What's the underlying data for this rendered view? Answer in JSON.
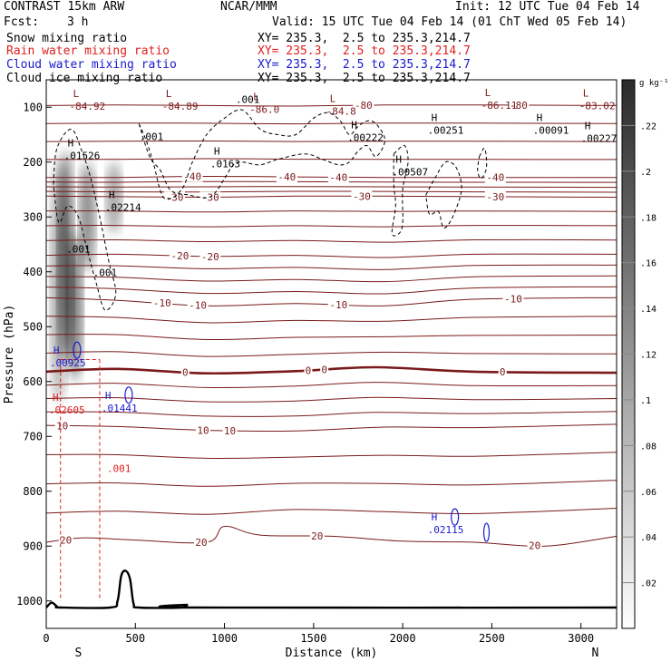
{
  "header": {
    "model": "CONTRAST 15km ARW",
    "center": "NCAR/MMM",
    "init": "Init: 12 UTC Tue 04 Feb 14",
    "fcst_label": "Fcst:",
    "fcst_value": "3 h",
    "valid": "Valid: 15 UTC Tue 04 Feb 14 (01 ChT Wed 05 Feb 14)"
  },
  "fields": [
    {
      "name": "Snow mixing ratio",
      "xy": "XY= 235.3,  2.5 to 235.3,214.7",
      "color": "#000000"
    },
    {
      "name": "Rain water mixing ratio",
      "xy": "XY= 235.3,  2.5 to 235.3,214.7",
      "color": "#e02020"
    },
    {
      "name": "Cloud water mixing ratio",
      "xy": "XY= 235.3,  2.5 to 235.3,214.7",
      "color": "#1a1ad0"
    },
    {
      "name": "Cloud ice mixing ratio",
      "xy": "XY= 235.3,  2.5 to 235.3,214.7",
      "color": "#000000"
    }
  ],
  "colors": {
    "temperature": "#7a1a1a",
    "rain": "#e02020",
    "cloud_water": "#1a1ad0",
    "ice": "#000000",
    "terrain": "#000000"
  },
  "chart_data": {
    "type": "cross-section",
    "xlabel": "Distance (km)",
    "ylabel": "Pressure (hPa)",
    "xlim": [
      0,
      3200
    ],
    "ylim": [
      1050,
      50
    ],
    "x_ticks": [
      0,
      500,
      1000,
      1500,
      2000,
      2500,
      3000
    ],
    "x_tick_labels": [
      "0",
      "500",
      "1000",
      "1500",
      "2000",
      "2500",
      "3000"
    ],
    "y_ticks": [
      100,
      200,
      300,
      400,
      500,
      600,
      700,
      800,
      900,
      1000
    ],
    "y_tick_labels": [
      "100",
      "200",
      "300",
      "400",
      "500",
      "600",
      "700",
      "800",
      "900",
      "1000"
    ],
    "end_labels": {
      "left": "S",
      "right": "N"
    },
    "colorbar": {
      "unit": "g kg⁻¹",
      "ticks": [
        ".02",
        ".04",
        ".06",
        ".08",
        ".1",
        ".12",
        ".14",
        ".16",
        ".18",
        ".2",
        ".22"
      ],
      "tick_values": [
        0.02,
        0.04,
        0.06,
        0.08,
        0.1,
        0.12,
        0.14,
        0.16,
        0.18,
        0.2,
        0.22
      ],
      "range": [
        0,
        0.24
      ]
    },
    "isotherms": [
      {
        "label": "-80",
        "value": -80,
        "points": [
          [
            0,
            97
          ],
          [
            400,
            96
          ],
          [
            900,
            97
          ],
          [
            1400,
            98
          ],
          [
            1900,
            96
          ],
          [
            2400,
            96
          ],
          [
            3200,
            97
          ]
        ],
        "label_x": [
          1780,
          2650
        ]
      },
      {
        "label": "-40",
        "value": -40,
        "points": [
          [
            0,
            228
          ],
          [
            400,
            228
          ],
          [
            900,
            226
          ],
          [
            1400,
            227
          ],
          [
            1900,
            228
          ],
          [
            2400,
            228
          ],
          [
            3200,
            228
          ]
        ],
        "label_x": [
          820,
          1350,
          1640,
          2520
        ]
      },
      {
        "label": "-30",
        "value": -30,
        "points": [
          [
            0,
            262
          ],
          [
            400,
            263
          ],
          [
            900,
            264
          ],
          [
            1400,
            262
          ],
          [
            1900,
            262
          ],
          [
            2400,
            263
          ],
          [
            3200,
            264
          ]
        ],
        "label_x": [
          720,
          920,
          1770,
          2520
        ]
      },
      {
        "label": "-20",
        "value": -20,
        "points": [
          [
            0,
            370
          ],
          [
            400,
            368
          ],
          [
            900,
            372
          ],
          [
            1400,
            370
          ],
          [
            1900,
            374
          ],
          [
            2400,
            368
          ],
          [
            3200,
            368
          ]
        ],
        "label_x": [
          750,
          920
        ]
      },
      {
        "label": "-10",
        "value": -10,
        "points": [
          [
            0,
            447
          ],
          [
            400,
            452
          ],
          [
            900,
            462
          ],
          [
            1400,
            458
          ],
          [
            1900,
            462
          ],
          [
            2400,
            450
          ],
          [
            3200,
            447
          ]
        ],
        "label_x": [
          650,
          850,
          1640,
          2620
        ]
      },
      {
        "label": "0",
        "value": 0,
        "bold": true,
        "points": [
          [
            0,
            582
          ],
          [
            400,
            577
          ],
          [
            900,
            585
          ],
          [
            1400,
            581
          ],
          [
            1850,
            574
          ],
          [
            2400,
            582
          ],
          [
            3200,
            584
          ]
        ],
        "label_x": [
          780,
          1470,
          1560,
          2560
        ]
      },
      {
        "label": "10",
        "value": 10,
        "points": [
          [
            0,
            680
          ],
          [
            400,
            682
          ],
          [
            900,
            689
          ],
          [
            1400,
            690
          ],
          [
            1900,
            683
          ],
          [
            2400,
            684
          ],
          [
            3200,
            678
          ]
        ],
        "label_x": [
          90,
          880,
          1030
        ]
      },
      {
        "label": "20",
        "value": 20,
        "points": [
          [
            0,
            893
          ],
          [
            200,
            885
          ],
          [
            500,
            889
          ],
          [
            900,
            893
          ],
          [
            1000,
            864
          ],
          [
            1200,
            880
          ],
          [
            1600,
            882
          ],
          [
            2000,
            891
          ],
          [
            2400,
            893
          ],
          [
            2800,
            900
          ],
          [
            3200,
            882
          ]
        ],
        "label_x": [
          110,
          870,
          1520,
          2740
        ]
      }
    ],
    "lows": [
      {
        "x": 130,
        "p": 98,
        "label": "-84.92"
      },
      {
        "x": 650,
        "p": 98,
        "label": "-84.89"
      },
      {
        "x": 1140,
        "p": 104,
        "label": "-86.0"
      },
      {
        "x": 1570,
        "p": 107,
        "label": "-84.8"
      },
      {
        "x": 2440,
        "p": 96,
        "label": "-86.11"
      },
      {
        "x": 2990,
        "p": 97,
        "label": "-83.02"
      }
    ],
    "highs": [
      {
        "x": 100,
        "p": 188,
        "label": ".01526"
      },
      {
        "x": 330,
        "p": 282,
        "label": ".02214"
      },
      {
        "x": 920,
        "p": 203,
        "label": ".0163"
      },
      {
        "x": 1690,
        "p": 155,
        "label": ".00222"
      },
      {
        "x": 2140,
        "p": 142,
        "label": ".00251"
      },
      {
        "x": 2730,
        "p": 142,
        "label": ".00091"
      },
      {
        "x": 3000,
        "p": 157,
        "label": ".00227"
      },
      {
        "x": 1940,
        "p": 218,
        "label": ".00507"
      }
    ],
    "ice_contour_labels": [
      {
        "x": 590,
        "p": 160,
        "label": ".001"
      },
      {
        "x": 1130,
        "p": 92,
        "label": ".001"
      },
      {
        "x": 180,
        "p": 365,
        "label": ".001"
      },
      {
        "x": 330,
        "p": 408,
        "label": ".001"
      }
    ],
    "cloud_water": [
      {
        "x": 20,
        "p": 566,
        "label": ".00925"
      },
      {
        "x": 310,
        "p": 648,
        "label": ".01441"
      },
      {
        "x": 2140,
        "p": 870,
        "label": ".02115"
      }
    ],
    "rain": [
      {
        "x": 15,
        "p": 652,
        "label": ".02605"
      },
      {
        "x": 340,
        "p": 758,
        "label": ".001"
      }
    ]
  }
}
